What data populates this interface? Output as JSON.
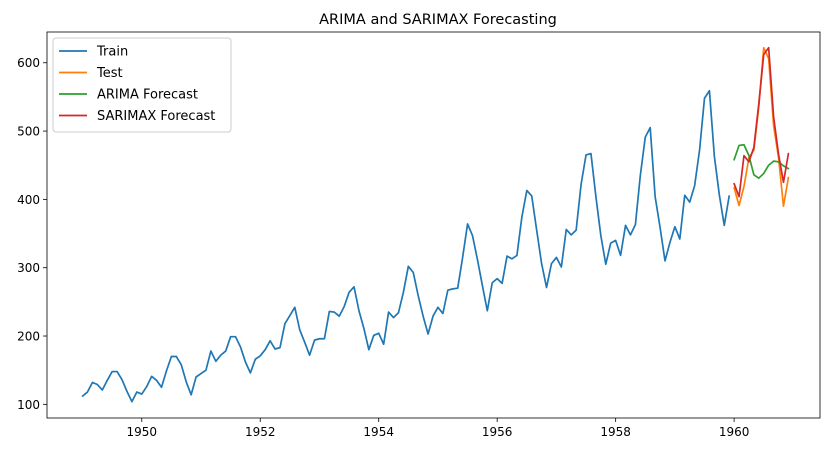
{
  "chart_data": {
    "type": "line",
    "title": "ARIMA and SARIMAX Forecasting",
    "xlabel": "",
    "ylabel": "",
    "xlim": [
      1948.4,
      1961.45
    ],
    "ylim": [
      80,
      645
    ],
    "x_ticks": [
      1950,
      1952,
      1954,
      1956,
      1958,
      1960
    ],
    "x_tick_labels": [
      "1950",
      "1952",
      "1954",
      "1956",
      "1958",
      "1960"
    ],
    "y_ticks": [
      100,
      200,
      300,
      400,
      500,
      600
    ],
    "y_tick_labels": [
      "100",
      "200",
      "300",
      "400",
      "500",
      "600"
    ],
    "grid": false,
    "legend_position": "upper-left",
    "series": [
      {
        "name": "Train",
        "color": "#1f77b4",
        "start": 1949.0,
        "step": 0.0833333,
        "values": [
          112,
          118,
          132,
          129,
          121,
          135,
          148,
          148,
          136,
          119,
          104,
          118,
          115,
          126,
          141,
          135,
          125,
          149,
          170,
          170,
          158,
          133,
          114,
          140,
          145,
          150,
          178,
          163,
          172,
          178,
          199,
          199,
          184,
          162,
          146,
          166,
          171,
          180,
          193,
          181,
          183,
          218,
          230,
          242,
          209,
          191,
          172,
          194,
          196,
          196,
          236,
          235,
          229,
          243,
          264,
          272,
          237,
          211,
          180,
          201,
          204,
          188,
          235,
          227,
          234,
          264,
          302,
          293,
          259,
          229,
          203,
          229,
          242,
          233,
          267,
          269,
          270,
          315,
          364,
          347,
          312,
          274,
          237,
          278,
          284,
          277,
          317,
          313,
          318,
          374,
          413,
          405,
          355,
          306,
          271,
          306,
          315,
          301,
          356,
          348,
          355,
          422,
          465,
          467,
          404,
          347,
          305,
          336,
          340,
          318,
          362,
          348,
          363,
          435,
          491,
          505,
          404,
          359,
          310,
          337,
          360,
          342,
          406,
          396,
          420,
          472,
          548,
          559,
          463,
          407,
          362,
          405
        ]
      },
      {
        "name": "Test",
        "color": "#ff7f0e",
        "start": 1960.0,
        "step": 0.0833333,
        "values": [
          417,
          391,
          419,
          461,
          472,
          535,
          622,
          606,
          508,
          461,
          390,
          432
        ]
      },
      {
        "name": "ARIMA Forecast",
        "color": "#2ca02c",
        "start": 1960.0,
        "step": 0.0833333,
        "values": [
          458,
          479,
          480,
          464,
          436,
          431,
          438,
          450,
          456,
          455,
          449,
          445
        ]
      },
      {
        "name": "SARIMAX Forecast",
        "color": "#d62728",
        "start": 1960.0,
        "step": 0.0833333,
        "values": [
          423,
          404,
          464,
          455,
          476,
          540,
          612,
          622,
          521,
          466,
          425,
          467
        ]
      }
    ]
  }
}
